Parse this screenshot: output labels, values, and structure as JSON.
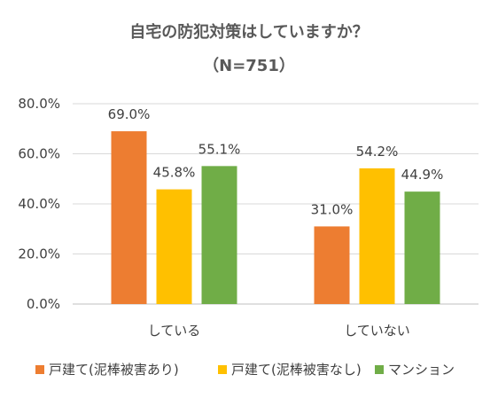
{
  "chart_data": {
    "type": "bar",
    "title": "自宅の防犯対策はしていますか？",
    "subtitle": "（N=751）",
    "categories": [
      "している",
      "していない"
    ],
    "series": [
      {
        "name": "戸建て(泥棒被害あり)",
        "color": "#ED7D31",
        "values": [
          69.0,
          31.0
        ],
        "labels": [
          "69.0%",
          "31.0%"
        ]
      },
      {
        "name": "戸建て(泥棒被害なし)",
        "color": "#FFC000",
        "values": [
          45.8,
          54.2
        ],
        "labels": [
          "45.8%",
          "54.2%"
        ]
      },
      {
        "name": "マンション",
        "color": "#70AD47",
        "values": [
          55.1,
          44.9
        ],
        "labels": [
          "55.1%",
          "44.9%"
        ]
      }
    ],
    "yticks": [
      "0.0%",
      "20.0%",
      "40.0%",
      "60.0%",
      "80.0%"
    ],
    "ylim": [
      0,
      80
    ],
    "grid": true,
    "legend_position": "bottom"
  }
}
